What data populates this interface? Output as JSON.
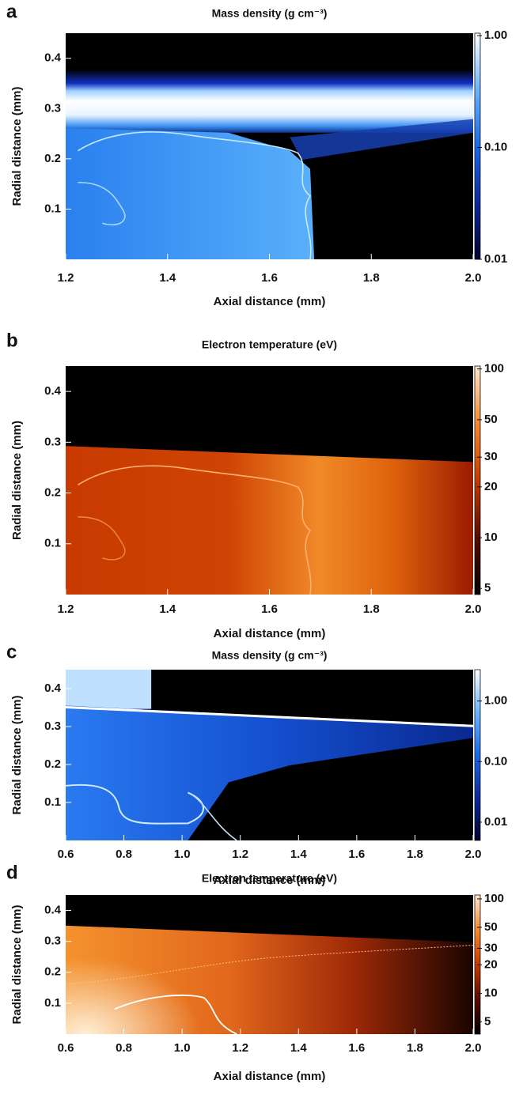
{
  "chart_data": [
    {
      "type": "heatmap",
      "panel_label": "a",
      "title": "Mass density (g cm⁻³)",
      "x_label": "Axial distance (mm)",
      "y_label": "Radial distance (mm)",
      "xlim": [
        1.2,
        2
      ],
      "ylim": [
        0,
        0.45
      ],
      "xticks": [
        1.2,
        1.4,
        1.6,
        1.8,
        {
          "value": 2,
          "label": "2.0"
        }
      ],
      "yticks": [
        0.1,
        0.2,
        0.3,
        0.4
      ],
      "colorbar": {
        "log_scale": true,
        "lim": [
          0.01,
          1.05
        ],
        "ticks": [
          0.01,
          {
            "value": 0.1,
            "label": "0.10"
          },
          {
            "value": 1,
            "label": "1.00"
          }
        ],
        "colormap": [
          "#000030",
          "#0a2a9a",
          "#1a6ae8",
          "#6ab4ff",
          "#ffffff"
        ]
      }
    },
    {
      "type": "heatmap",
      "panel_label": "b",
      "title": "Electron temperature (eV)",
      "x_label": "Axial distance (mm)",
      "y_label": "Radial distance (mm)",
      "xlim": [
        1.2,
        2
      ],
      "ylim": [
        0,
        0.45
      ],
      "xticks": [
        1.2,
        1.4,
        1.6,
        1.8,
        {
          "value": 2,
          "label": "2.0"
        }
      ],
      "yticks": [
        0.1,
        0.2,
        0.3,
        0.4
      ],
      "colorbar": {
        "log_scale": true,
        "lim": [
          4.6,
          104
        ],
        "ticks": [
          5,
          10,
          20,
          30,
          50,
          100
        ],
        "colormap": [
          "#000000",
          "#5a0a00",
          "#c83a00",
          "#f48a30",
          "#ffe8d0"
        ]
      }
    },
    {
      "type": "heatmap",
      "panel_label": "c",
      "title": "Mass density (g cm⁻³)",
      "x_label": "Axial distance (mm)",
      "y_label": "Radial distance (mm)",
      "xlim": [
        0.6,
        2
      ],
      "ylim": [
        0,
        0.45
      ],
      "xticks": [
        0.6,
        0.8,
        {
          "value": 1,
          "label": "1.0"
        },
        1.2,
        1.4,
        1.6,
        1.8,
        {
          "value": 2,
          "label": "2.0"
        }
      ],
      "yticks": [
        0.1,
        0.2,
        0.3,
        0.4
      ],
      "colorbar": {
        "log_scale": true,
        "lim": [
          0.005,
          3.3
        ],
        "ticks": [
          0.01,
          {
            "value": 0.1,
            "label": "0.10"
          },
          {
            "value": 1,
            "label": "1.00"
          }
        ],
        "colormap": [
          "#000030",
          "#0a2a9a",
          "#1a6ae8",
          "#6ab4ff",
          "#ffffff"
        ]
      }
    },
    {
      "type": "heatmap",
      "panel_label": "d",
      "title": "Electron temperature (eV)",
      "x_label": "Axial distance (mm)",
      "y_label": "Radial distance (mm)",
      "xlim": [
        0.6,
        2
      ],
      "ylim": [
        0,
        0.45
      ],
      "xticks": [
        0.6,
        0.8,
        {
          "value": 1,
          "label": "1.0"
        },
        1.2,
        1.4,
        1.6,
        1.8,
        {
          "value": 2,
          "label": "2.0"
        }
      ],
      "yticks": [
        0.1,
        0.2,
        0.3,
        0.4
      ],
      "colorbar": {
        "log_scale": true,
        "lim": [
          3.7,
          110
        ],
        "ticks": [
          5,
          10,
          20,
          30,
          50,
          100
        ],
        "colormap": [
          "#000000",
          "#5a0a00",
          "#c83a00",
          "#f48a30",
          "#ffe8d0"
        ]
      }
    }
  ]
}
